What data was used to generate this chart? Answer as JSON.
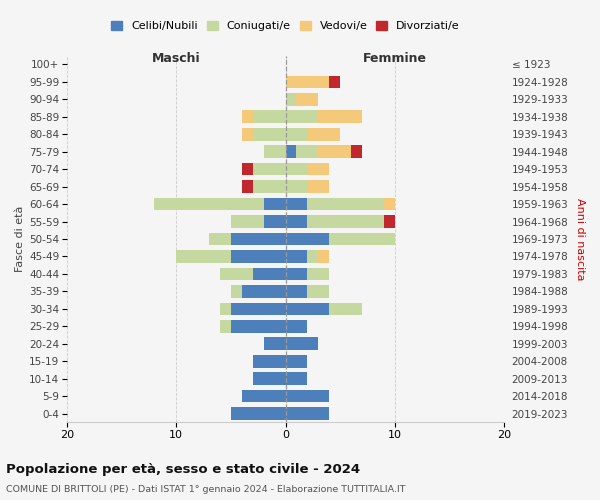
{
  "age_groups": [
    "0-4",
    "5-9",
    "10-14",
    "15-19",
    "20-24",
    "25-29",
    "30-34",
    "35-39",
    "40-44",
    "45-49",
    "50-54",
    "55-59",
    "60-64",
    "65-69",
    "70-74",
    "75-79",
    "80-84",
    "85-89",
    "90-94",
    "95-99",
    "100+"
  ],
  "birth_years": [
    "2019-2023",
    "2014-2018",
    "2009-2013",
    "2004-2008",
    "1999-2003",
    "1994-1998",
    "1989-1993",
    "1984-1988",
    "1979-1983",
    "1974-1978",
    "1969-1973",
    "1964-1968",
    "1959-1963",
    "1954-1958",
    "1949-1953",
    "1944-1948",
    "1939-1943",
    "1934-1938",
    "1929-1933",
    "1924-1928",
    "≤ 1923"
  ],
  "maschi": {
    "celibi": [
      5,
      4,
      3,
      3,
      2,
      5,
      5,
      4,
      3,
      5,
      5,
      2,
      2,
      0,
      0,
      0,
      0,
      0,
      0,
      0,
      0
    ],
    "coniugati": [
      0,
      0,
      0,
      0,
      0,
      1,
      1,
      1,
      3,
      5,
      2,
      3,
      10,
      3,
      3,
      2,
      3,
      3,
      0,
      0,
      0
    ],
    "vedovi": [
      0,
      0,
      0,
      0,
      0,
      0,
      0,
      0,
      0,
      0,
      0,
      0,
      0,
      0,
      0,
      0,
      1,
      1,
      0,
      0,
      0
    ],
    "divorziati": [
      0,
      0,
      0,
      0,
      0,
      0,
      0,
      0,
      0,
      0,
      0,
      0,
      0,
      1,
      1,
      0,
      0,
      0,
      0,
      0,
      0
    ]
  },
  "femmine": {
    "nubili": [
      4,
      4,
      2,
      2,
      3,
      2,
      4,
      2,
      2,
      2,
      4,
      2,
      2,
      0,
      0,
      1,
      0,
      0,
      0,
      0,
      0
    ],
    "coniugate": [
      0,
      0,
      0,
      0,
      0,
      0,
      3,
      2,
      2,
      1,
      6,
      7,
      7,
      2,
      2,
      2,
      2,
      3,
      1,
      0,
      0
    ],
    "vedove": [
      0,
      0,
      0,
      0,
      0,
      0,
      0,
      0,
      0,
      1,
      0,
      0,
      1,
      2,
      2,
      3,
      3,
      4,
      2,
      4,
      0
    ],
    "divorziate": [
      0,
      0,
      0,
      0,
      0,
      0,
      0,
      0,
      0,
      0,
      0,
      1,
      0,
      0,
      0,
      1,
      0,
      0,
      0,
      1,
      0
    ]
  },
  "colors": {
    "celibi_nubili": "#4d7fba",
    "coniugati": "#c5d8a0",
    "vedovi": "#f5c97a",
    "divorziati": "#c0282d"
  },
  "title": "Popolazione per età, sesso e stato civile - 2024",
  "subtitle": "COMUNE DI BRITTOLI (PE) - Dati ISTAT 1° gennaio 2024 - Elaborazione TUTTITALIA.IT",
  "xlabel_left": "Maschi",
  "xlabel_right": "Femmine",
  "ylabel_left": "Fasce di età",
  "ylabel_right": "Anni di nascita",
  "xlim": 20,
  "legend_labels": [
    "Celibi/Nubili",
    "Coniugati/e",
    "Vedovi/e",
    "Divorziati/e"
  ],
  "bg_color": "#f5f5f5",
  "grid_color": "#cccccc"
}
